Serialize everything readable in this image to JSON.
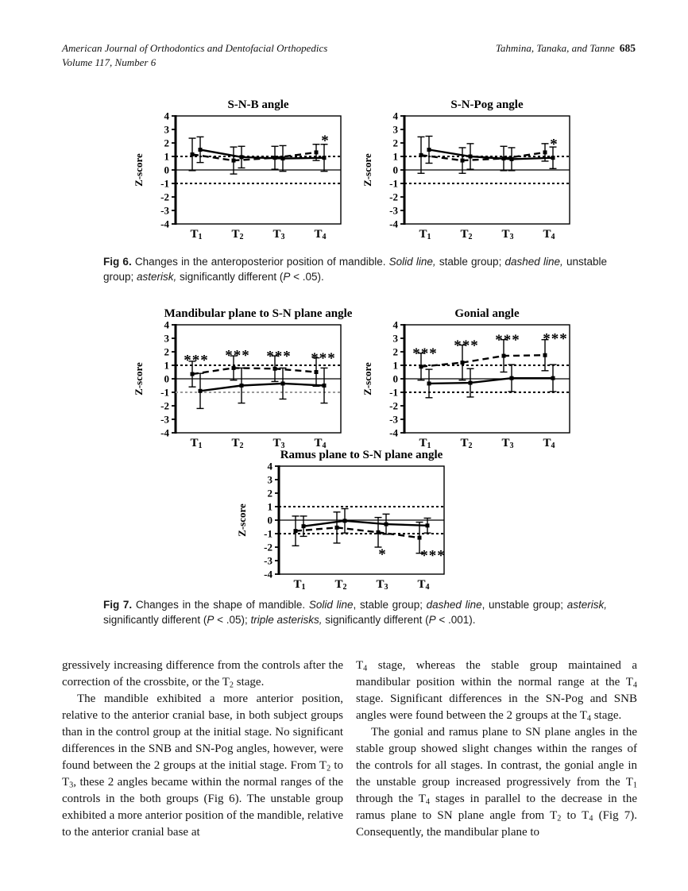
{
  "header": {
    "journal": "American Journal of Orthodontics and Dentofacial Orthopedics",
    "volume": "Volume 117, Number 6",
    "authors": "Tahmina, Tanaka, and Tanne",
    "page_number": "685"
  },
  "captions": {
    "fig6": "**Fig 6.** Changes in the anteroposterior position of mandible. _Solid line,_ stable group; _dashed line,_ unstable group; _asterisk,_ significantly different (_P_ < .05).",
    "fig7": "**Fig 7.** Changes in the shape of mandible. _Solid line_, stable group; _dashed line_, unstable group; _asterisk,_ significantly different (_P_ < .05); _triple asterisks,_ significantly different (_P_ < .001)."
  },
  "body": {
    "left": [
      "gressively increasing difference from the controls after the correction of the crossbite, or the T~2~ stage.",
      "The mandible exhibited a more anterior position, relative to the anterior cranial base, in both subject groups than in the control group at the initial stage. No significant differences in the SNB and SN-Pog angles, however, were found between the 2 groups at the initial stage. From T~2~ to T~3~, these 2 angles became within the normal ranges of the controls in the both groups (Fig 6). The unstable group exhibited a more anterior position of the mandible, relative to the anterior cranial base at"
    ],
    "right": [
      "T~4~ stage, whereas the stable group maintained a mandibular position within the normal range at the T~4~ stage. Significant differences in the SN-Pog and SNB angles were found between the 2 groups at the T~4~ stage.",
      "The gonial and ramus plane to SN plane angles in the stable group showed slight changes within the ranges of the controls for all stages. In contrast, the gonial angle in the unstable group increased progressively from the T~1~ through the T~4~ stages in parallel to the decrease in the ramus plane to SN plane angle from T~2~ to T~4~ (Fig 7). Consequently, the mandibular plane to"
    ]
  },
  "chart_data": [
    {
      "type": "line",
      "title": "S-N-B angle",
      "ylabel": "Z-score",
      "categories": [
        "T1",
        "T2",
        "T3",
        "T4"
      ],
      "ylim": [
        -4,
        4
      ],
      "yticks": [
        4,
        3,
        2,
        1,
        0,
        -1,
        -2,
        -3,
        -4
      ],
      "ref_solid": 0,
      "ref_dotted": [
        {
          "y": 1
        },
        {
          "y": -1
        }
      ],
      "series": [
        {
          "name": "stable group",
          "style": "solid",
          "values": [
            1.5,
            0.95,
            0.85,
            0.9
          ],
          "err": [
            0.95,
            0.8,
            0.95,
            1.0
          ]
        },
        {
          "name": "unstable group",
          "style": "dashed",
          "values": [
            1.15,
            0.7,
            0.9,
            1.3
          ],
          "err": [
            1.2,
            1.0,
            0.85,
            0.6
          ]
        }
      ],
      "significance": [
        {
          "category": "T4",
          "y": 2.35,
          "label": "*",
          "dx": 6
        }
      ]
    },
    {
      "type": "line",
      "title": "S-N-Pog angle",
      "ylabel": "Z-score",
      "categories": [
        "T1",
        "T2",
        "T3",
        "T4"
      ],
      "ylim": [
        -4,
        4
      ],
      "yticks": [
        4,
        3,
        2,
        1,
        0,
        -1,
        -2,
        -3,
        -4
      ],
      "ref_solid": 0,
      "ref_dotted": [
        {
          "y": 1
        },
        {
          "y": -1
        }
      ],
      "series": [
        {
          "name": "stable group",
          "style": "solid",
          "values": [
            1.5,
            1.0,
            0.8,
            0.9
          ],
          "err": [
            1.0,
            0.95,
            0.85,
            0.8
          ]
        },
        {
          "name": "unstable group",
          "style": "dashed",
          "values": [
            1.1,
            0.7,
            0.85,
            1.3
          ],
          "err": [
            1.35,
            0.95,
            0.9,
            0.65
          ]
        }
      ],
      "significance": [
        {
          "category": "T4",
          "y": 2.1,
          "label": "*",
          "dx": 6
        }
      ]
    },
    {
      "type": "line",
      "title": "Mandibular plane to S-N plane angle",
      "ylabel": "Z-score",
      "categories": [
        "T1",
        "T2",
        "T3",
        "T4"
      ],
      "ylim": [
        -4,
        4
      ],
      "yticks": [
        4,
        3,
        2,
        1,
        0,
        -1,
        -2,
        -3,
        -4
      ],
      "ref_solid": 0,
      "ref_dotted": [
        {
          "y": 1
        },
        {
          "y": -1,
          "light": true
        }
      ],
      "series": [
        {
          "name": "stable group",
          "style": "solid",
          "values": [
            -0.9,
            -0.5,
            -0.35,
            -0.5
          ],
          "err": [
            1.3,
            1.3,
            1.15,
            1.3
          ]
        },
        {
          "name": "unstable group",
          "style": "dashed",
          "values": [
            0.35,
            0.8,
            0.75,
            0.5
          ],
          "err": [
            0.95,
            0.9,
            0.95,
            1.05
          ]
        }
      ],
      "significance": [
        {
          "category": "T1",
          "y": 1.55,
          "label": "***"
        },
        {
          "category": "T2",
          "y": 1.9,
          "label": "***"
        },
        {
          "category": "T3",
          "y": 1.85,
          "label": "***"
        },
        {
          "category": "T4",
          "y": 1.7,
          "label": "***",
          "dx": 4
        }
      ]
    },
    {
      "type": "line",
      "title": "Gonial angle",
      "ylabel": "Z-score",
      "categories": [
        "T1",
        "T2",
        "T3",
        "T4"
      ],
      "ylim": [
        -4,
        4
      ],
      "yticks": [
        4,
        3,
        2,
        1,
        0,
        -1,
        -2,
        -3,
        -4
      ],
      "ref_solid": 0,
      "ref_dotted": [
        {
          "y": 1
        },
        {
          "y": -1
        }
      ],
      "series": [
        {
          "name": "stable group",
          "style": "solid",
          "values": [
            -0.35,
            -0.3,
            0.05,
            0.05
          ],
          "err": [
            1.05,
            1.05,
            1.0,
            1.0
          ]
        },
        {
          "name": "unstable group",
          "style": "dashed",
          "values": [
            0.9,
            1.2,
            1.7,
            1.75
          ],
          "err": [
            1.0,
            1.3,
            1.2,
            1.15
          ]
        }
      ],
      "significance": [
        {
          "category": "T1",
          "y": 2.05,
          "label": "***"
        },
        {
          "category": "T2",
          "y": 2.65,
          "label": "***"
        },
        {
          "category": "T3",
          "y": 3.05,
          "label": "***"
        },
        {
          "category": "T4",
          "y": 3.15,
          "label": "***",
          "dx": 8
        }
      ]
    },
    {
      "type": "line",
      "title": "Ramus plane to S-N plane angle",
      "ylabel": "Z-score",
      "categories": [
        "T1",
        "T2",
        "T3",
        "T4"
      ],
      "ylim": [
        -4,
        4
      ],
      "yticks": [
        4,
        3,
        2,
        1,
        0,
        -1,
        -2,
        -3,
        -4
      ],
      "ref_solid": 0,
      "ref_dotted": [
        {
          "y": 1
        },
        {
          "y": -1
        }
      ],
      "series": [
        {
          "name": "stable group",
          "style": "solid",
          "values": [
            -0.45,
            -0.05,
            -0.3,
            -0.4
          ],
          "err": [
            0.75,
            0.9,
            0.75,
            0.55
          ]
        },
        {
          "name": "unstable group",
          "style": "dashed",
          "values": [
            -0.8,
            -0.55,
            -0.9,
            -1.3
          ],
          "err": [
            1.1,
            1.15,
            1.1,
            1.15
          ]
        }
      ],
      "significance": [
        {
          "category": "T3",
          "y": -2.35,
          "label": "*"
        },
        {
          "category": "T4",
          "y": -2.45,
          "label": "***",
          "dx": 12
        }
      ]
    }
  ]
}
